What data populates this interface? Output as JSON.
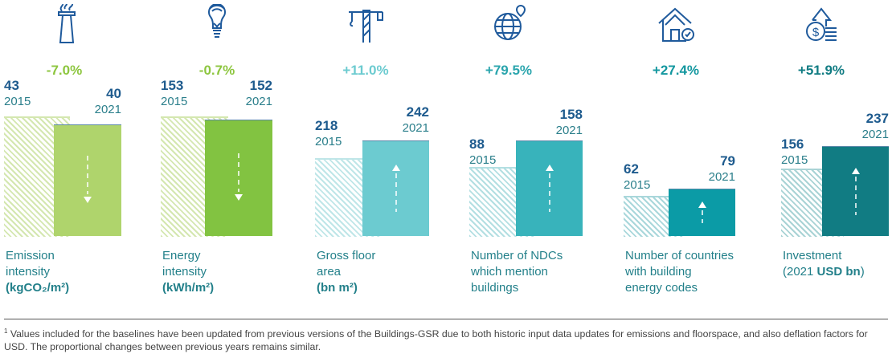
{
  "chart_data": {
    "type": "bar",
    "categories": [
      "2015",
      "2021"
    ],
    "panels": [
      {
        "label_lines": [
          "Emission",
          "intensity"
        ],
        "unit": "(kgCO₂/m²)",
        "change": "-7.0%",
        "values": [
          43,
          40
        ],
        "icon": "chimney-smoke-icon",
        "color_2015": "#d4e7b0",
        "color_2021": "#afd46c",
        "change_color": "#8dc63f",
        "arrow": "down"
      },
      {
        "label_lines": [
          "Energy",
          "intensity"
        ],
        "unit": "(kWh/m²)",
        "change": "-0.7%",
        "values": [
          153,
          152
        ],
        "icon": "lightbulb-icon",
        "color_2015": "#d4e7b0",
        "color_2021": "#82c341",
        "change_color": "#8dc63f",
        "arrow": "down"
      },
      {
        "label_lines": [
          "Gross floor",
          "area"
        ],
        "unit": "(bn m²)",
        "change": "+11.0%",
        "values": [
          218,
          242
        ],
        "icon": "construction-crane-icon",
        "color_2015": "#bfe6e8",
        "color_2021": "#6ccbd0",
        "change_color": "#6ccbd0",
        "arrow": "up"
      },
      {
        "label_lines": [
          "Number of NDCs",
          "which mention",
          "buildings"
        ],
        "unit": "",
        "change": "+79.5%",
        "values": [
          88,
          158
        ],
        "icon": "globe-pins-icon",
        "color_2015": "#b3dfe2",
        "color_2021": "#38b3bb",
        "change_color": "#2aa5ad",
        "arrow": "up"
      },
      {
        "label_lines": [
          "Number of countries",
          "with building",
          "energy codes"
        ],
        "unit": "",
        "change": "+27.4%",
        "values": [
          62,
          79
        ],
        "icon": "house-check-icon",
        "color_2015": "#a9d7db",
        "color_2021": "#0b9ba6",
        "change_color": "#13979f",
        "arrow": "up"
      },
      {
        "label_lines": [
          "Investment"
        ],
        "unit_prefix": "(2021 ",
        "unit": "USD bn",
        "unit_suffix": ")",
        "change": "+51.9%",
        "values": [
          156,
          237
        ],
        "icon": "money-coins-up-icon",
        "color_2015": "#a9d3d5",
        "color_2021": "#117c83",
        "change_color": "#117c83",
        "arrow": "up"
      }
    ]
  },
  "footnote": {
    "marker": "1",
    "text": "Values included for the baselines have been updated from previous versions of the Buildings-GSR due to both historic input data updates for emissions and floorspace, and also deflation factors for USD. The proportional changes between previous years remains similar."
  }
}
